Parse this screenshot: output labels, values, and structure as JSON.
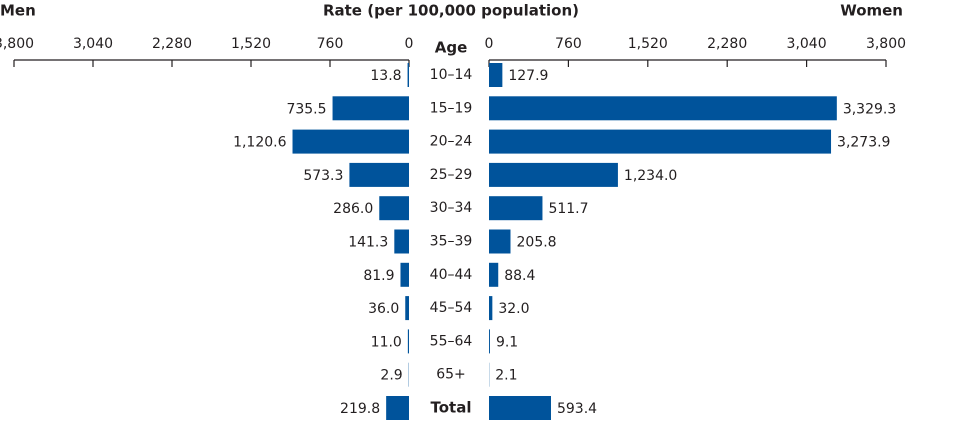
{
  "chart_data": {
    "type": "butterfly",
    "title": "Rate (per 100,000 population)",
    "category_axis_label": "Age",
    "categories": [
      "10–14",
      "15–19",
      "20–24",
      "25–29",
      "30–34",
      "35–39",
      "40–44",
      "45–54",
      "55–64",
      "65+",
      "Total"
    ],
    "series": [
      {
        "name": "Men",
        "color": "#00539b",
        "values": [
          13.8,
          735.5,
          1120.6,
          573.3,
          286.0,
          141.3,
          81.9,
          36.0,
          11.0,
          2.9,
          219.8
        ],
        "value_labels": [
          "13.8",
          "735.5",
          "1,120.6",
          "573.3",
          "286.0",
          "141.3",
          "81.9",
          "36.0",
          "11.0",
          "2.9",
          "219.8"
        ]
      },
      {
        "name": "Women",
        "color": "#00539b",
        "values": [
          127.9,
          3329.3,
          3273.9,
          1234.0,
          511.7,
          205.8,
          88.4,
          32.0,
          9.1,
          2.1,
          593.4
        ],
        "value_labels": [
          "127.9",
          "3,329.3",
          "3,273.9",
          "1,234.0",
          "511.7",
          "205.8",
          "88.4",
          "32.0",
          "9.1",
          "2.1",
          "593.4"
        ]
      }
    ],
    "xlim": [
      0,
      3800
    ],
    "xticks": [
      0,
      760,
      {
        "value": 1520,
        "label": "1,520"
      },
      {
        "value": 2280,
        "label": "2,280"
      },
      {
        "value": 3040,
        "label": "3,040"
      },
      {
        "value": 3800,
        "label": "3,800"
      }
    ]
  }
}
